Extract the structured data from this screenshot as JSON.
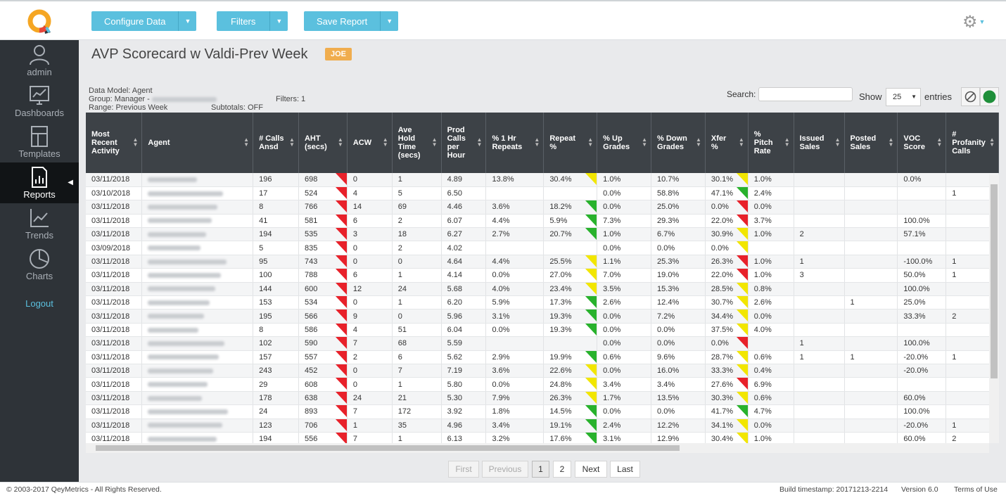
{
  "toolbar": {
    "configure_label": "Configure Data",
    "filters_label": "Filters",
    "save_label": "Save Report"
  },
  "sidebar": {
    "items": [
      {
        "label": "admin"
      },
      {
        "label": "Dashboards"
      },
      {
        "label": "Templates"
      },
      {
        "label": "Reports"
      },
      {
        "label": "Trends"
      },
      {
        "label": "Charts"
      }
    ],
    "logout": "Logout"
  },
  "page": {
    "title": "AVP Scorecard w Valdi-Prev Week",
    "badge": "JOE",
    "data_model": "Data Model: Agent",
    "group": "Group: Manager - ",
    "range": "Range: Previous Week",
    "filters": "Filters: 1",
    "subtotals": "Subtotals: OFF"
  },
  "controls": {
    "search_label": "Search:",
    "show_label": "Show",
    "page_size": "25",
    "entries_label": "entries"
  },
  "table": {
    "columns": [
      "Most Recent Activity",
      "Agent",
      "# Calls Ansd",
      "AHT (secs)",
      "ACW",
      "Ave Hold Time (secs)",
      "Prod Calls per Hour",
      "% 1 Hr Repeats",
      "Repeat %",
      "% Up Grades",
      "% Down Grades",
      "Xfer %",
      "% Pitch Rate",
      "Issued Sales",
      "Posted Sales",
      "VOC Score",
      "# Profanity Calls"
    ],
    "rows": [
      [
        "03/11/2018",
        "",
        "196",
        "698",
        "0",
        "1",
        "4.89",
        "13.8%",
        "30.4%",
        "1.0%",
        "10.7%",
        "30.1%",
        "1.0%",
        "",
        "",
        "0.0%",
        ""
      ],
      [
        "03/10/2018",
        "",
        "17",
        "524",
        "4",
        "5",
        "6.50",
        "",
        "",
        "0.0%",
        "58.8%",
        "47.1%",
        "2.4%",
        "",
        "",
        "",
        "1"
      ],
      [
        "03/11/2018",
        "",
        "8",
        "766",
        "14",
        "69",
        "4.46",
        "3.6%",
        "18.2%",
        "0.0%",
        "25.0%",
        "0.0%",
        "0.0%",
        "",
        "",
        "",
        ""
      ],
      [
        "03/11/2018",
        "",
        "41",
        "581",
        "6",
        "2",
        "6.07",
        "4.4%",
        "5.9%",
        "7.3%",
        "29.3%",
        "22.0%",
        "3.7%",
        "",
        "",
        "100.0%",
        ""
      ],
      [
        "03/11/2018",
        "",
        "194",
        "535",
        "3",
        "18",
        "6.27",
        "2.7%",
        "20.7%",
        "1.0%",
        "6.7%",
        "30.9%",
        "1.0%",
        "2",
        "",
        "57.1%",
        ""
      ],
      [
        "03/09/2018",
        "",
        "5",
        "835",
        "0",
        "2",
        "4.02",
        "",
        "",
        "0.0%",
        "0.0%",
        "0.0%",
        "",
        "",
        "",
        "",
        ""
      ],
      [
        "03/11/2018",
        "",
        "95",
        "743",
        "0",
        "0",
        "4.64",
        "4.4%",
        "25.5%",
        "1.1%",
        "25.3%",
        "26.3%",
        "1.0%",
        "1",
        "",
        "-100.0%",
        "1"
      ],
      [
        "03/11/2018",
        "",
        "100",
        "788",
        "6",
        "1",
        "4.14",
        "0.0%",
        "27.0%",
        "7.0%",
        "19.0%",
        "22.0%",
        "1.0%",
        "3",
        "",
        "50.0%",
        "1"
      ],
      [
        "03/11/2018",
        "",
        "144",
        "600",
        "12",
        "24",
        "5.68",
        "4.0%",
        "23.4%",
        "3.5%",
        "15.3%",
        "28.5%",
        "0.8%",
        "",
        "",
        "100.0%",
        ""
      ],
      [
        "03/11/2018",
        "",
        "153",
        "534",
        "0",
        "1",
        "6.20",
        "5.9%",
        "17.3%",
        "2.6%",
        "12.4%",
        "30.7%",
        "2.6%",
        "",
        "1",
        "25.0%",
        ""
      ],
      [
        "03/11/2018",
        "",
        "195",
        "566",
        "9",
        "0",
        "5.96",
        "3.1%",
        "19.3%",
        "0.0%",
        "7.2%",
        "34.4%",
        "0.0%",
        "",
        "",
        "33.3%",
        "2"
      ],
      [
        "03/11/2018",
        "",
        "8",
        "586",
        "4",
        "51",
        "6.04",
        "0.0%",
        "19.3%",
        "0.0%",
        "0.0%",
        "37.5%",
        "4.0%",
        "",
        "",
        "",
        ""
      ],
      [
        "03/11/2018",
        "",
        "102",
        "590",
        "7",
        "68",
        "5.59",
        "",
        "",
        "0.0%",
        "0.0%",
        "0.0%",
        "",
        "1",
        "",
        "100.0%",
        ""
      ],
      [
        "03/11/2018",
        "",
        "157",
        "557",
        "2",
        "6",
        "5.62",
        "2.9%",
        "19.9%",
        "0.6%",
        "9.6%",
        "28.7%",
        "0.6%",
        "1",
        "1",
        "-20.0%",
        "1"
      ],
      [
        "03/11/2018",
        "",
        "243",
        "452",
        "0",
        "7",
        "7.19",
        "3.6%",
        "22.6%",
        "0.0%",
        "16.0%",
        "33.3%",
        "0.4%",
        "",
        "",
        "-20.0%",
        ""
      ],
      [
        "03/11/2018",
        "",
        "29",
        "608",
        "0",
        "1",
        "5.80",
        "0.0%",
        "24.8%",
        "3.4%",
        "3.4%",
        "27.6%",
        "6.9%",
        "",
        "",
        "",
        ""
      ],
      [
        "03/11/2018",
        "",
        "178",
        "638",
        "24",
        "21",
        "5.30",
        "7.9%",
        "26.3%",
        "1.7%",
        "13.5%",
        "30.3%",
        "0.6%",
        "",
        "",
        "60.0%",
        ""
      ],
      [
        "03/11/2018",
        "",
        "24",
        "893",
        "7",
        "172",
        "3.92",
        "1.8%",
        "14.5%",
        "0.0%",
        "0.0%",
        "41.7%",
        "4.7%",
        "",
        "",
        "100.0%",
        ""
      ],
      [
        "03/11/2018",
        "",
        "123",
        "706",
        "1",
        "35",
        "4.96",
        "3.4%",
        "19.1%",
        "2.4%",
        "12.2%",
        "34.1%",
        "0.0%",
        "",
        "",
        "-20.0%",
        "1"
      ],
      [
        "03/11/2018",
        "",
        "194",
        "556",
        "7",
        "1",
        "6.13",
        "3.2%",
        "17.6%",
        "3.1%",
        "12.9%",
        "30.4%",
        "1.0%",
        "",
        "",
        "60.0%",
        "2"
      ]
    ],
    "flags": [
      {
        "3": "r",
        "8": "y",
        "11": "y"
      },
      {
        "3": "r",
        "11": "g"
      },
      {
        "3": "r",
        "8": "g",
        "11": "r"
      },
      {
        "3": "r",
        "8": "g",
        "11": "r"
      },
      {
        "3": "r",
        "8": "g",
        "11": "y"
      },
      {
        "3": "r",
        "11": "y"
      },
      {
        "3": "r",
        "8": "y",
        "11": "r"
      },
      {
        "3": "r",
        "8": "y",
        "11": "r"
      },
      {
        "3": "r",
        "8": "y",
        "11": "y"
      },
      {
        "3": "r",
        "8": "g",
        "11": "y"
      },
      {
        "3": "r",
        "8": "g",
        "11": "y"
      },
      {
        "3": "r",
        "8": "g",
        "11": "y"
      },
      {
        "3": "r",
        "11": "r"
      },
      {
        "3": "r",
        "8": "g",
        "11": "y"
      },
      {
        "3": "r",
        "8": "y",
        "11": "y"
      },
      {
        "3": "r",
        "8": "y",
        "11": "r"
      },
      {
        "3": "r",
        "8": "y",
        "11": "y"
      },
      {
        "3": "r",
        "8": "g",
        "11": "g"
      },
      {
        "3": "r",
        "8": "g",
        "11": "y"
      },
      {
        "3": "r",
        "8": "g",
        "11": "y"
      }
    ]
  },
  "pagination": {
    "first": "First",
    "previous": "Previous",
    "pages": [
      "1",
      "2"
    ],
    "next": "Next",
    "last": "Last"
  },
  "footer": {
    "copyright": "© 2003-2017 QeyMetrics - All Rights Reserved.",
    "build": "Build timestamp: 20171213-2214",
    "version": "Version 6.0",
    "terms": "Terms of Use"
  },
  "colors": {
    "accent": "#5bc0de",
    "flag_red": "#e8212a",
    "flag_yellow": "#f2e600",
    "flag_green": "#28b22c",
    "badge": "#f0ad4e"
  }
}
